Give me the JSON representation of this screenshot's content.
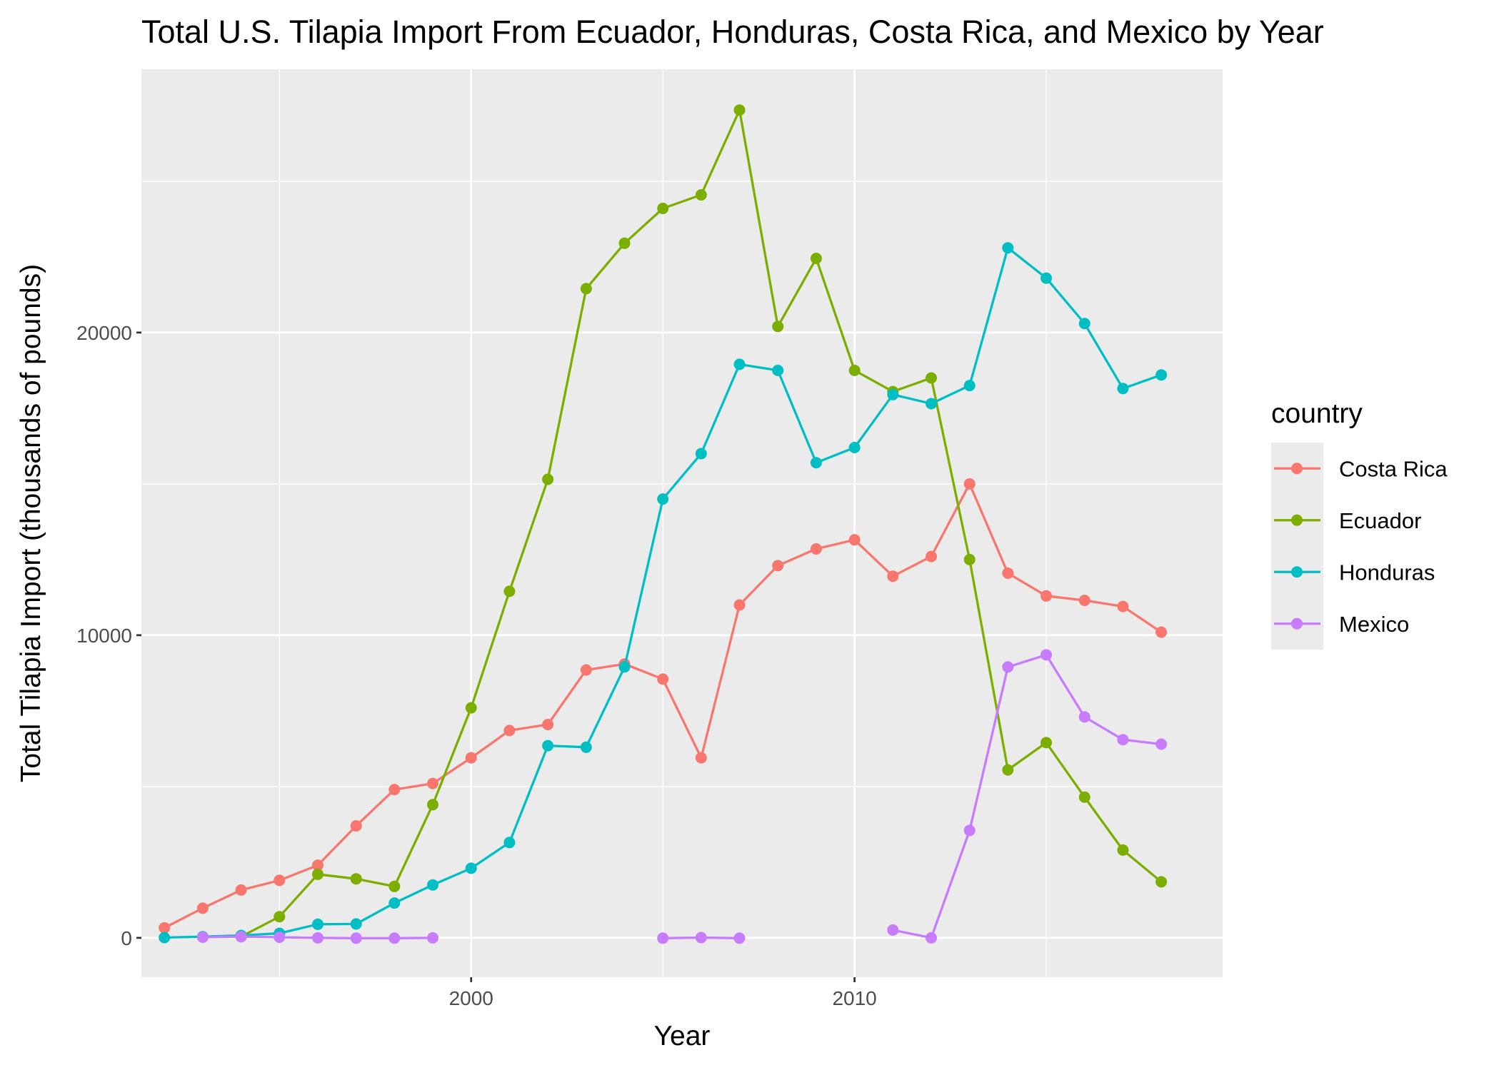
{
  "chart_data": {
    "type": "line",
    "title": "Total U.S. Tilapia Import From Ecuador, Honduras, Costa Rica, and Mexico by Year",
    "xlabel": "Year",
    "ylabel": "Total Tilapia Import (thousands of pounds)",
    "xlim": [
      1991.4,
      2019.6
    ],
    "ylim": [
      -1300,
      28700
    ],
    "x_ticks": [
      2000,
      2010
    ],
    "y_ticks": [
      0,
      10000,
      20000
    ],
    "grid": true,
    "legend_title": "country",
    "legend_position": "right",
    "series": [
      {
        "name": "Costa Rica",
        "color": "#F8766D",
        "points": [
          [
            1992,
            330
          ],
          [
            1993,
            980
          ],
          [
            1994,
            1580
          ],
          [
            1995,
            1900
          ],
          [
            1996,
            2400
          ],
          [
            1997,
            3700
          ],
          [
            1998,
            4900
          ],
          [
            1999,
            5100
          ],
          [
            2000,
            5950
          ],
          [
            2001,
            6850
          ],
          [
            2002,
            7050
          ],
          [
            2003,
            8850
          ],
          [
            2004,
            9050
          ],
          [
            2005,
            8550
          ],
          [
            2006,
            5950
          ],
          [
            2007,
            11000
          ],
          [
            2008,
            12300
          ],
          [
            2009,
            12850
          ],
          [
            2010,
            13150
          ],
          [
            2011,
            11950
          ],
          [
            2012,
            12600
          ],
          [
            2013,
            15000
          ],
          [
            2014,
            12050
          ],
          [
            2015,
            11300
          ],
          [
            2016,
            11150
          ],
          [
            2017,
            10950
          ],
          [
            2018,
            10100
          ]
        ]
      },
      {
        "name": "Ecuador",
        "color": "#7CAE00",
        "points": [
          [
            1994,
            40
          ],
          [
            1995,
            700
          ],
          [
            1996,
            2100
          ],
          [
            1997,
            1950
          ],
          [
            1998,
            1700
          ],
          [
            1999,
            4400
          ],
          [
            2000,
            7600
          ],
          [
            2001,
            11450
          ],
          [
            2002,
            15150
          ],
          [
            2003,
            21450
          ],
          [
            2004,
            22950
          ],
          [
            2005,
            24100
          ],
          [
            2006,
            24550
          ],
          [
            2007,
            27350
          ],
          [
            2008,
            20200
          ],
          [
            2009,
            22450
          ],
          [
            2010,
            18750
          ],
          [
            2011,
            18050
          ],
          [
            2012,
            18500
          ],
          [
            2013,
            12500
          ],
          [
            2014,
            5550
          ],
          [
            2015,
            6450
          ],
          [
            2016,
            4650
          ],
          [
            2017,
            2900
          ],
          [
            2018,
            1850
          ]
        ]
      },
      {
        "name": "Honduras",
        "color": "#00BFC4",
        "points": [
          [
            1992,
            10
          ],
          [
            1993,
            40
          ],
          [
            1994,
            80
          ],
          [
            1995,
            150
          ],
          [
            1996,
            450
          ],
          [
            1997,
            460
          ],
          [
            1998,
            1150
          ],
          [
            1999,
            1750
          ],
          [
            2000,
            2300
          ],
          [
            2001,
            3150
          ],
          [
            2002,
            6350
          ],
          [
            2003,
            6300
          ],
          [
            2004,
            8950
          ],
          [
            2005,
            14500
          ],
          [
            2006,
            16000
          ],
          [
            2007,
            18950
          ],
          [
            2008,
            18750
          ],
          [
            2009,
            15700
          ],
          [
            2010,
            16200
          ],
          [
            2011,
            17950
          ],
          [
            2012,
            17650
          ],
          [
            2013,
            18250
          ],
          [
            2014,
            22800
          ],
          [
            2015,
            21800
          ],
          [
            2016,
            20300
          ],
          [
            2017,
            18150
          ],
          [
            2018,
            18600
          ]
        ]
      },
      {
        "name": "Mexico",
        "color": "#C77CFF",
        "segments": [
          [
            [
              1993,
              20
            ],
            [
              1994,
              40
            ],
            [
              1995,
              20
            ],
            [
              1996,
              0
            ],
            [
              1997,
              -10
            ],
            [
              1998,
              -10
            ],
            [
              1999,
              0
            ]
          ],
          [
            [
              2005,
              -10
            ],
            [
              2006,
              10
            ],
            [
              2007,
              -10
            ]
          ],
          [
            [
              2011,
              260
            ],
            [
              2012,
              0
            ],
            [
              2013,
              3550
            ],
            [
              2014,
              8950
            ],
            [
              2015,
              9350
            ],
            [
              2016,
              7300
            ],
            [
              2017,
              6550
            ],
            [
              2018,
              6400
            ]
          ]
        ]
      }
    ]
  }
}
